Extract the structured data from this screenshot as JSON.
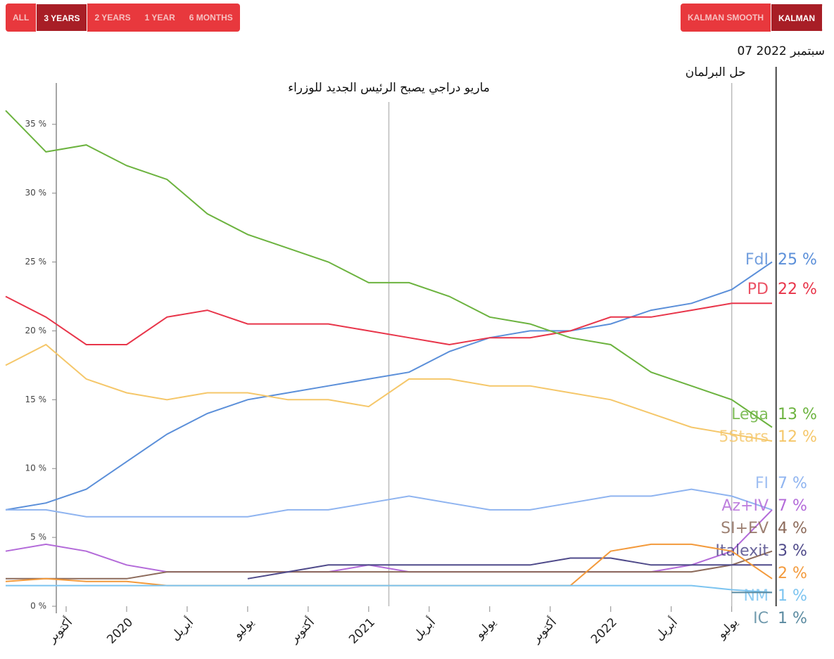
{
  "controls": {
    "ranges": [
      "ALL",
      "3 YEARS",
      "2 YEARS",
      "1 YEAR",
      "6 MONTHS"
    ],
    "active_range": 1,
    "smoothing": [
      "KALMAN SMOOTH",
      "KALMAN"
    ],
    "active_smoothing": 1
  },
  "chart_data": {
    "type": "line",
    "x": [
      "2019-07",
      "2019-09",
      "2019-11",
      "2020-01",
      "2020-03",
      "2020-05",
      "2020-07",
      "2020-09",
      "2020-11",
      "2021-01",
      "2021-03",
      "2021-05",
      "2021-07",
      "2021-09",
      "2021-11",
      "2022-01",
      "2022-03",
      "2022-05",
      "2022-07",
      "2022-09"
    ],
    "xlim": [
      "2019-07",
      "2022-09"
    ],
    "xticks": [
      {
        "value": "2019-10",
        "label": "أكتوبر"
      },
      {
        "value": "2020-01",
        "label": "2020"
      },
      {
        "value": "2020-04",
        "label": "أبريل"
      },
      {
        "value": "2020-07",
        "label": "يوليو"
      },
      {
        "value": "2020-10",
        "label": "أكتوبر"
      },
      {
        "value": "2021-01",
        "label": "2021"
      },
      {
        "value": "2021-04",
        "label": "أبريل"
      },
      {
        "value": "2021-07",
        "label": "يوليو"
      },
      {
        "value": "2021-10",
        "label": "أكتوبر"
      },
      {
        "value": "2022-01",
        "label": "2022"
      },
      {
        "value": "2022-04",
        "label": "أبريل"
      },
      {
        "value": "2022-07",
        "label": "يوليو"
      }
    ],
    "ylim": [
      0,
      38
    ],
    "yticks": [
      {
        "value": 0,
        "label": "0 %"
      },
      {
        "value": 5,
        "label": "5 %"
      },
      {
        "value": 10,
        "label": "10 %"
      },
      {
        "value": 15,
        "label": "15 %"
      },
      {
        "value": 20,
        "label": "20 %"
      },
      {
        "value": 25,
        "label": "25 %"
      },
      {
        "value": 30,
        "label": "30 %"
      },
      {
        "value": 35,
        "label": "35 %"
      }
    ],
    "annotations": [
      {
        "x": "2021-02",
        "label": "ماريو دراجي يصبح الرئيس الجديد للوزراء"
      },
      {
        "x": "2022-07",
        "label": "حل البرلمان"
      },
      {
        "x": "2022-09-07",
        "label": "07 سبتمبر 2022"
      }
    ],
    "series": [
      {
        "name": "FdI",
        "color": "#5b8fd9",
        "values": [
          7,
          7.5,
          8.5,
          10.5,
          12.5,
          14,
          15,
          15.5,
          16,
          16.5,
          17,
          18.5,
          19.5,
          20,
          20,
          20.5,
          21.5,
          22,
          23,
          25
        ],
        "last": 25,
        "last_label": "25 %"
      },
      {
        "name": "PD",
        "color": "#e8354a",
        "values": [
          22.5,
          21,
          19,
          19,
          21,
          21.5,
          20.5,
          20.5,
          20.5,
          20,
          19.5,
          19,
          19.5,
          19.5,
          20,
          21,
          21,
          21.5,
          22,
          22
        ],
        "last": 22,
        "last_label": "22 %"
      },
      {
        "name": "Lega",
        "color": "#6cb33f",
        "values": [
          36,
          33,
          33.5,
          32,
          31,
          28.5,
          27,
          26,
          25,
          23.5,
          23.5,
          22.5,
          21,
          20.5,
          19.5,
          19,
          17,
          16,
          15,
          13
        ],
        "last": 13,
        "last_label": "13 %"
      },
      {
        "name": "5Stars",
        "color": "#f5c76a",
        "values": [
          17.5,
          19,
          16.5,
          15.5,
          15,
          15.5,
          15.5,
          15,
          15,
          14.5,
          16.5,
          16.5,
          16,
          16,
          15.5,
          15,
          14,
          13,
          12.5,
          12
        ],
        "last": 12,
        "last_label": "12 %"
      },
      {
        "name": "FI",
        "color": "#8fb4f0",
        "values": [
          7,
          7,
          6.5,
          6.5,
          6.5,
          6.5,
          6.5,
          7,
          7,
          7.5,
          8,
          7.5,
          7,
          7,
          7.5,
          8,
          8,
          8.5,
          8,
          7
        ],
        "last": 7,
        "last_label": "7 %"
      },
      {
        "name": "Az+IV",
        "color": "#b36ad9",
        "values": [
          4,
          4.5,
          4,
          3,
          2.5,
          2.5,
          2.5,
          2.5,
          2.5,
          3,
          2.5,
          2.5,
          2.5,
          2.5,
          2.5,
          2.5,
          2.5,
          3,
          4,
          7
        ],
        "last": 7,
        "last_label": "7 %"
      },
      {
        "name": "SI+EV",
        "color": "#8c6a5a",
        "values": [
          2,
          2,
          2,
          2,
          2.5,
          2.5,
          2.5,
          2.5,
          2.5,
          2.5,
          2.5,
          2.5,
          2.5,
          2.5,
          2.5,
          2.5,
          2.5,
          2.5,
          3,
          4
        ],
        "last": 4,
        "last_label": "4 %"
      },
      {
        "name": "Italexit",
        "color": "#4f4a8a",
        "values": [
          null,
          null,
          null,
          null,
          null,
          null,
          2,
          2.5,
          3,
          3,
          3,
          3,
          3,
          3,
          3.5,
          3.5,
          3,
          3,
          3,
          3
        ],
        "last": 3,
        "last_label": "3 %"
      },
      {
        "color": "#f39a3c",
        "values": [
          1.8,
          2,
          1.8,
          1.8,
          1.5,
          1.5,
          1.5,
          1.5,
          1.5,
          1.5,
          1.5,
          1.5,
          1.5,
          1.5,
          1.5,
          4,
          4.5,
          4.5,
          4,
          2
        ],
        "last": 2,
        "last_label": "2 %"
      },
      {
        "name": "NM",
        "color": "#7cc4f0",
        "values": [
          1.5,
          1.5,
          1.5,
          1.5,
          1.5,
          1.5,
          1.5,
          1.5,
          1.5,
          1.5,
          1.5,
          1.5,
          1.5,
          1.5,
          1.5,
          1.5,
          1.5,
          1.5,
          1.2,
          1
        ],
        "last": 1,
        "last_label": "1 %"
      },
      {
        "name": "IC",
        "color": "#5a8aa0",
        "values": [
          null,
          null,
          null,
          null,
          null,
          null,
          null,
          null,
          null,
          null,
          null,
          null,
          null,
          null,
          null,
          null,
          null,
          null,
          1,
          1
        ],
        "last": 1,
        "last_label": "1 %"
      }
    ]
  }
}
